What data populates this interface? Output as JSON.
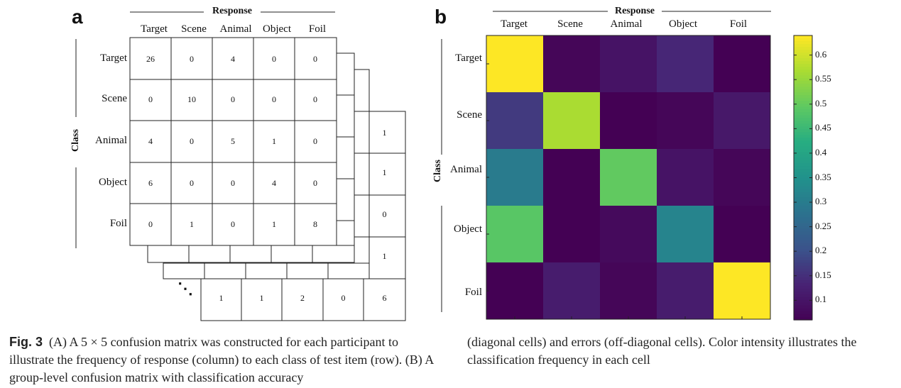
{
  "panel_a": {
    "label": "a",
    "response_title": "Response",
    "class_title": "Class",
    "columns": [
      "Target",
      "Scene",
      "Animal",
      "Object",
      "Foil"
    ],
    "rows": [
      "Target",
      "Scene",
      "Animal",
      "Object",
      "Foil"
    ],
    "matrix": [
      [
        "26",
        "0",
        "4",
        "0",
        "0"
      ],
      [
        "0",
        "10",
        "0",
        "0",
        "0"
      ],
      [
        "4",
        "0",
        "5",
        "1",
        "0"
      ],
      [
        "6",
        "0",
        "0",
        "4",
        "0"
      ],
      [
        "0",
        "1",
        "0",
        "1",
        "8"
      ]
    ],
    "back_column": [
      "1",
      "1",
      "0",
      "1"
    ],
    "back_row": [
      "1",
      "1",
      "2",
      "0",
      "6"
    ],
    "ellipsis": "⋱"
  },
  "panel_b": {
    "label": "b",
    "response_title": "Response",
    "class_title": "Class",
    "columns": [
      "Target",
      "Scene",
      "Animal",
      "Object",
      "Foil"
    ],
    "rows": [
      "Target",
      "Scene",
      "Animal",
      "Object",
      "Foil"
    ],
    "colorbar_ticks": [
      "0.6",
      "0.55",
      "0.5",
      "0.45",
      "0.4",
      "0.35",
      "0.3",
      "0.25",
      "0.2",
      "0.15",
      "0.1"
    ]
  },
  "chart_data": {
    "type": "heatmap",
    "x": [
      "Target",
      "Scene",
      "Animal",
      "Object",
      "Foil"
    ],
    "y": [
      "Target",
      "Scene",
      "Animal",
      "Object",
      "Foil"
    ],
    "xlabel": "Response",
    "ylabel": "Class",
    "values": [
      [
        0.64,
        0.07,
        0.1,
        0.14,
        0.05
      ],
      [
        0.17,
        0.57,
        0.05,
        0.07,
        0.11
      ],
      [
        0.3,
        0.04,
        0.5,
        0.1,
        0.07
      ],
      [
        0.49,
        0.05,
        0.08,
        0.32,
        0.05
      ],
      [
        0.05,
        0.12,
        0.07,
        0.12,
        0.64
      ]
    ],
    "colorbar_range": [
      0.06,
      0.64
    ],
    "colormap": "viridis"
  },
  "caption": {
    "fig_label": "Fig. 3",
    "left_text": "(A) A 5 × 5 confusion matrix was constructed for each participant to illustrate the frequency of response (column) to each class of test item (row). (B) A group-level confusion matrix with classification accuracy",
    "right_text": "(diagonal cells) and errors (off-diagonal cells). Color intensity illustrates the classification frequency in each cell"
  }
}
